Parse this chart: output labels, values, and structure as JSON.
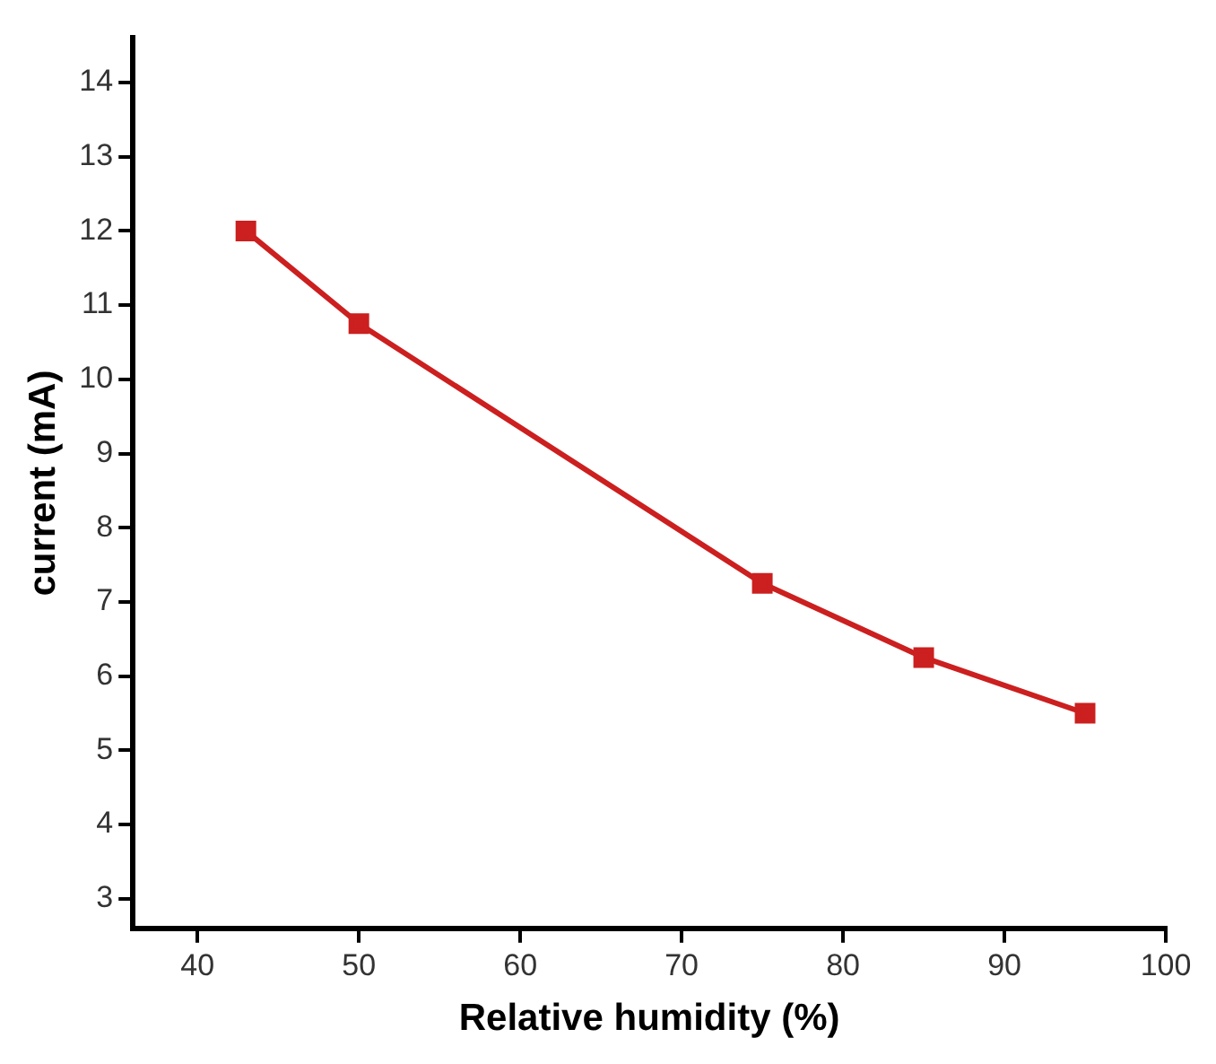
{
  "chart_data": {
    "type": "line",
    "xlabel": "Relative humidity (%)",
    "ylabel": "current (mA)",
    "x": [
      43,
      50,
      75,
      85,
      95
    ],
    "series": [
      {
        "color": "#cc1f1f",
        "values": [
          12,
          10.75,
          7.25,
          6.25,
          5.5
        ]
      }
    ],
    "xlim": [
      36,
      100
    ],
    "xticks": [
      40,
      50,
      60,
      70,
      80,
      90,
      100
    ],
    "ylim": [
      2.6,
      14.6
    ],
    "yticks": [
      3,
      4,
      5,
      6,
      7,
      8,
      9,
      10,
      11,
      12,
      13,
      14
    ],
    "grid": false,
    "legend": false,
    "marker": "square",
    "line_style": "solid"
  }
}
